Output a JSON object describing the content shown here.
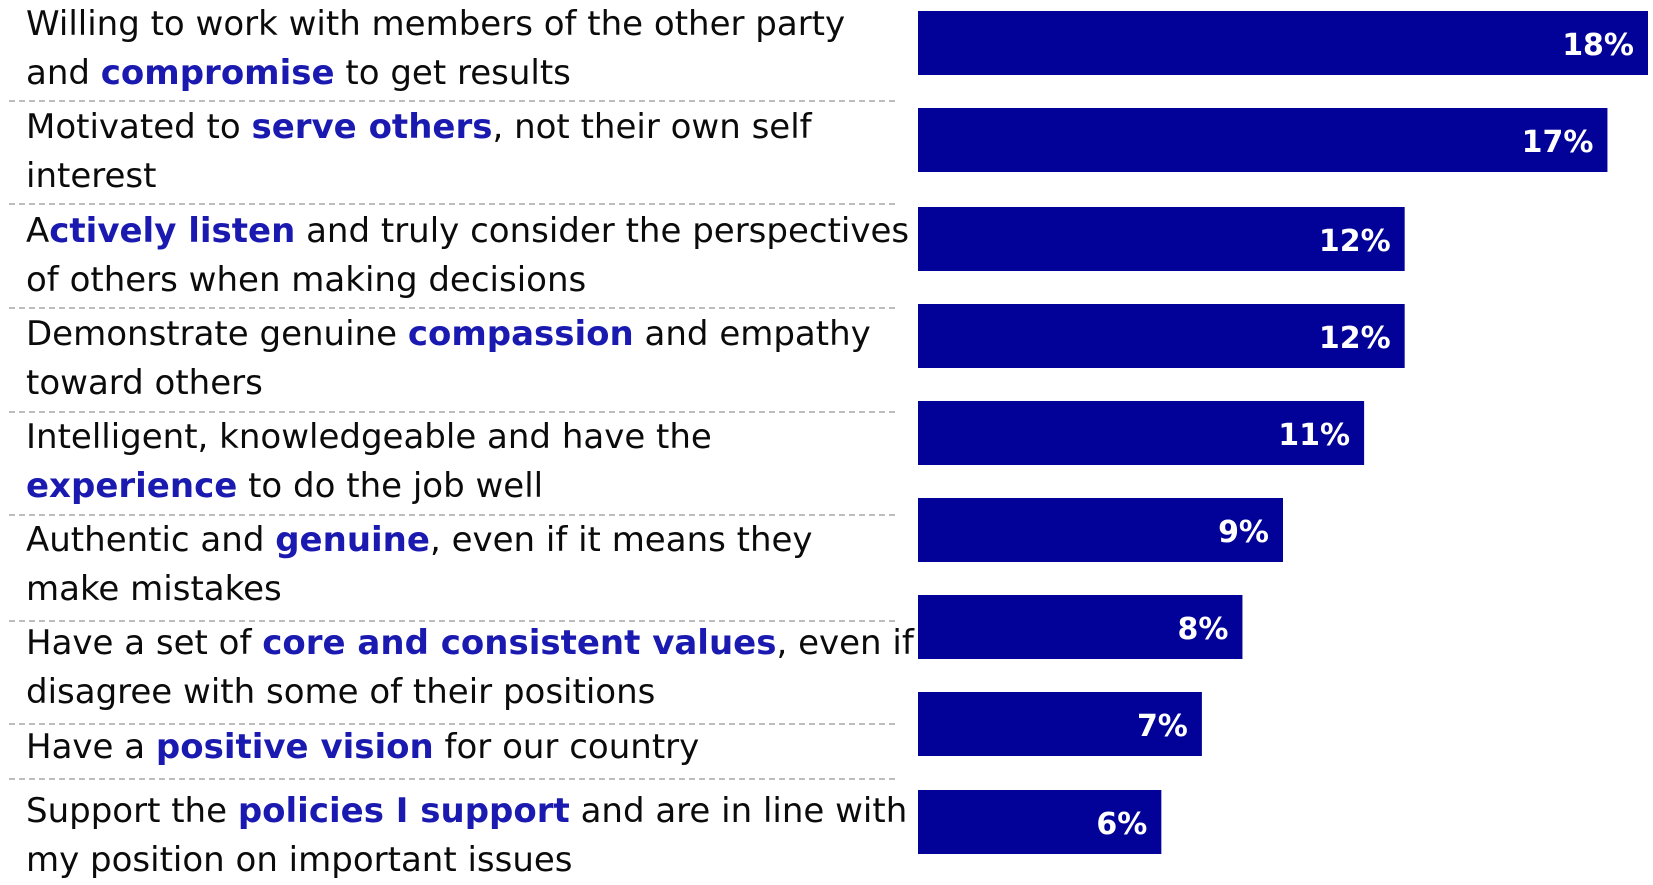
{
  "chart_data": {
    "type": "bar",
    "orientation": "horizontal",
    "bar_color": "#020299",
    "highlight_color": "#1a1ab0",
    "value_label_color": "#ffffff",
    "grid": false,
    "legend": "none",
    "xlim": [
      0,
      18
    ],
    "categories": [
      "Willing to work with members of the other party and compromise to get results",
      "Motivated to serve others, not their own self interest",
      "Actively listen and truly consider the perspectives of others when making decisions",
      "Demonstrate genuine compassion and empathy toward others",
      "Intelligent, knowledgeable and have the experience to do the job well",
      "Authentic and genuine, even if it means they make mistakes",
      "Have a set of core and consistent values, even if I disagree with some of their positions",
      "Have a positive vision for our country",
      "Support the policies I support and are in line with my position on important issues"
    ],
    "values": [
      18,
      17,
      12,
      12,
      11,
      9,
      8,
      7,
      6
    ],
    "value_labels": [
      "18%",
      "17%",
      "12%",
      "12%",
      "11%",
      "9%",
      "8%",
      "7%",
      "6%"
    ],
    "label_lines": [
      [
        [
          {
            "t": "Willing to work with members of the other party",
            "h": false
          }
        ],
        [
          {
            "t": "and ",
            "h": false
          },
          {
            "t": "compromise",
            "h": true
          },
          {
            "t": " to get results",
            "h": false
          }
        ]
      ],
      [
        [
          {
            "t": "Motivated to ",
            "h": false
          },
          {
            "t": "serve others",
            "h": true
          },
          {
            "t": ", not their own self",
            "h": false
          }
        ],
        [
          {
            "t": "interest",
            "h": false
          }
        ]
      ],
      [
        [
          {
            "t": "A",
            "h": false
          },
          {
            "t": "ctively listen",
            "h": true
          },
          {
            "t": " and truly consider the perspectives",
            "h": false
          }
        ],
        [
          {
            "t": "of others when making decisions",
            "h": false
          }
        ]
      ],
      [
        [
          {
            "t": "Demonstrate genuine ",
            "h": false
          },
          {
            "t": "compassion",
            "h": true
          },
          {
            "t": " and empathy",
            "h": false
          }
        ],
        [
          {
            "t": "toward others",
            "h": false
          }
        ]
      ],
      [
        [
          {
            "t": "Intelligent, knowledgeable and have the",
            "h": false
          }
        ],
        [
          {
            "t": "experience",
            "h": true
          },
          {
            "t": " to do the job well",
            "h": false
          }
        ]
      ],
      [
        [
          {
            "t": "Authentic and ",
            "h": false
          },
          {
            "t": "genuine",
            "h": true
          },
          {
            "t": ", even if it means they",
            "h": false
          }
        ],
        [
          {
            "t": "make mistakes",
            "h": false
          }
        ]
      ],
      [
        [
          {
            "t": "Have a set of ",
            "h": false
          },
          {
            "t": "core and consistent values",
            "h": true
          },
          {
            "t": ", even if I",
            "h": false
          }
        ],
        [
          {
            "t": "disagree with some of their positions",
            "h": false
          }
        ]
      ],
      [
        [
          {
            "t": "Have a ",
            "h": false
          },
          {
            "t": "positive vision",
            "h": true
          },
          {
            "t": " for our country",
            "h": false
          }
        ]
      ],
      [
        [
          {
            "t": "Support the ",
            "h": false
          },
          {
            "t": "policies I support",
            "h": true
          },
          {
            "t": " and are in line with",
            "h": false
          }
        ],
        [
          {
            "t": "my position on important issues",
            "h": false
          }
        ]
      ]
    ]
  }
}
